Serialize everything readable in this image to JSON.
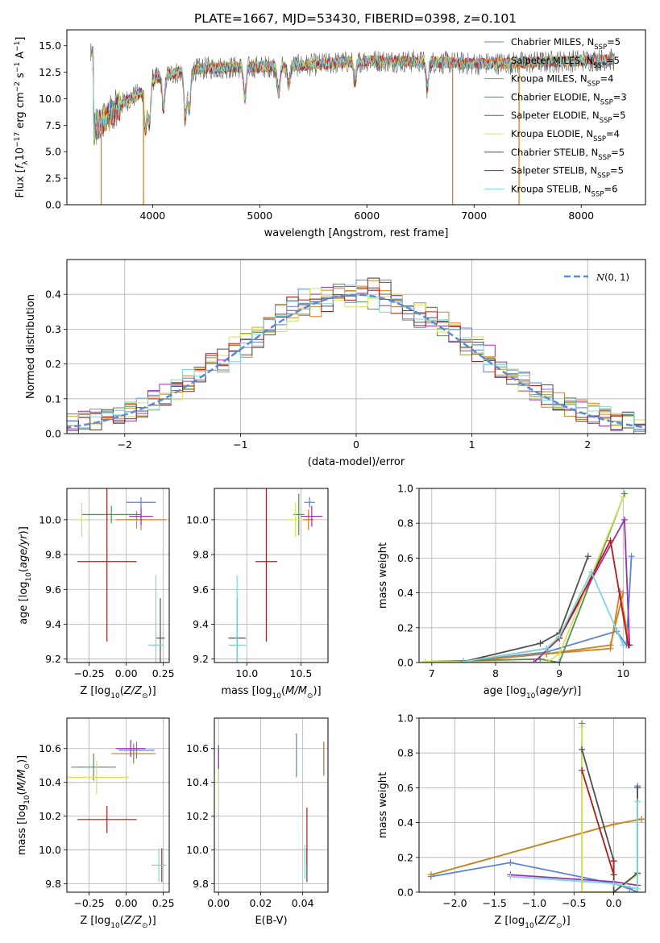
{
  "figure_title": "PLATE=1667, MJD=53430, FIBERID=0398, z=0.101",
  "models": [
    {
      "name": "Chabrier MILES",
      "color": "#5b83d6"
    },
    {
      "name": "Salpeter MILES",
      "color": "#e07b2a"
    },
    {
      "name": "Kroupa MILES",
      "color": "#c08a25"
    },
    {
      "name": "Chabrier ELODIE",
      "color": "#5c8a5c"
    },
    {
      "name": "Salpeter ELODIE",
      "color": "#9b30b0"
    },
    {
      "name": "Kroupa ELODIE",
      "color": "#d8e35a"
    },
    {
      "name": "Chabrier STELIB",
      "color": "#505050"
    },
    {
      "name": "Salpeter STELIB",
      "color": "#b01c1c"
    },
    {
      "name": "Kroupa STELIB",
      "color": "#7ad8d8"
    }
  ],
  "chart_data": [
    {
      "id": "spectrum",
      "type": "line",
      "title": "PLATE=1667, MJD=53430, FIBERID=0398, z=0.101",
      "xlabel": "wavelength [Angstrom, rest frame]",
      "ylabel": "Flux [f_λ 10^-17 erg cm^-2 s^-1 A^-1]",
      "xlim": [
        3200,
        8600
      ],
      "ylim": [
        0,
        16.5
      ],
      "xticks": [
        4000,
        5000,
        6000,
        7000,
        8000
      ],
      "yticks": [
        0.0,
        2.5,
        5.0,
        7.5,
        10.0,
        12.5,
        15.0
      ],
      "grid": false,
      "legend_position": "right",
      "legend": [
        {
          "label": "Chabrier MILES, N",
          "sub": "SSP",
          "suffix": "=5"
        },
        {
          "label": "Salpeter MILES, N",
          "sub": "SSP",
          "suffix": "=5"
        },
        {
          "label": "Kroupa MILES, N",
          "sub": "SSP",
          "suffix": "=4"
        },
        {
          "label": "Chabrier ELODIE, N",
          "sub": "SSP",
          "suffix": "=3"
        },
        {
          "label": "Salpeter ELODIE, N",
          "sub": "SSP",
          "suffix": "=5"
        },
        {
          "label": "Kroupa ELODIE, N",
          "sub": "SSP",
          "suffix": "=4"
        },
        {
          "label": "Chabrier STELIB, N",
          "sub": "SSP",
          "suffix": "=5"
        },
        {
          "label": "Salpeter STELIB, N",
          "sub": "SSP",
          "suffix": "=5"
        },
        {
          "label": "Kroupa STELIB, N",
          "sub": "SSP",
          "suffix": "=6"
        }
      ],
      "continuum": [
        [
          3450,
          7.0
        ],
        [
          3600,
          8.5
        ],
        [
          3750,
          9.8
        ],
        [
          3900,
          10.6
        ],
        [
          4000,
          11.8
        ],
        [
          4200,
          12.4
        ],
        [
          4500,
          12.9
        ],
        [
          5000,
          13.0
        ],
        [
          5500,
          13.2
        ],
        [
          6000,
          13.6
        ],
        [
          6500,
          13.5
        ],
        [
          7000,
          13.3
        ],
        [
          7500,
          13.4
        ],
        [
          8000,
          13.6
        ],
        [
          8300,
          13.7
        ]
      ],
      "absorption_lines": [
        [
          3934,
          7.0
        ],
        [
          3969,
          7.5
        ],
        [
          4102,
          9.0
        ],
        [
          4305,
          8.0
        ],
        [
          4341,
          8.8
        ],
        [
          4861,
          10.0
        ],
        [
          5175,
          10.4
        ],
        [
          5270,
          11.2
        ],
        [
          5890,
          11.5
        ],
        [
          6563,
          11.0
        ]
      ],
      "spikes": [
        [
          3520,
          0
        ],
        [
          3915,
          0
        ],
        [
          6800,
          0
        ],
        [
          7420,
          0
        ]
      ]
    },
    {
      "id": "residuals",
      "type": "histogram",
      "xlabel": "(data-model)/error",
      "ylabel": "Normed distribution",
      "xlim": [
        -2.5,
        2.5
      ],
      "ylim": [
        0,
        0.5
      ],
      "xticks": [
        -2,
        -1,
        0,
        1,
        2
      ],
      "yticks": [
        0.0,
        0.1,
        0.2,
        0.3,
        0.4
      ],
      "grid": true,
      "legend_position": "top-right",
      "reference_label": "N(0,1)",
      "reference_curve": "standard normal",
      "bin_width": 0.1
    },
    {
      "id": "age-vs-Z",
      "type": "errorbar",
      "xlabel": "Z [log10(Z/Z☉)]",
      "ylabel": "age [log10(age/yr)]",
      "xlim": [
        -0.4,
        0.29
      ],
      "ylim": [
        9.18,
        10.18
      ],
      "xticks": [
        -0.25,
        0.0,
        0.25
      ],
      "yticks": [
        9.2,
        9.4,
        9.6,
        9.8,
        10.0
      ],
      "grid": true,
      "points": [
        {
          "model": 0,
          "x": 0.1,
          "y": 10.1,
          "xerr": 0.1,
          "yerr": 0.03
        },
        {
          "model": 1,
          "x": 0.1,
          "y": 10.0,
          "xerr": 0.17,
          "yerr": 0.06
        },
        {
          "model": 2,
          "x": 0.07,
          "y": 10.0,
          "xerr": 0.06,
          "yerr": 0.05
        },
        {
          "model": 3,
          "x": -0.1,
          "y": 10.03,
          "xerr": 0.2,
          "yerr": 0.05
        },
        {
          "model": 4,
          "x": 0.1,
          "y": 10.02,
          "xerr": 0.08,
          "yerr": 0.05
        },
        {
          "model": 5,
          "x": -0.3,
          "y": 10.0,
          "xerr": 0.03,
          "yerr": 0.1
        },
        {
          "model": 6,
          "x": 0.23,
          "y": 9.32,
          "xerr": 0.03,
          "yerr": 0.23
        },
        {
          "model": 7,
          "x": -0.13,
          "y": 9.76,
          "xerr": 0.2,
          "yerr": 0.46
        },
        {
          "model": 8,
          "x": 0.2,
          "y": 9.28,
          "xerr": 0.05,
          "yerr": 0.4
        }
      ]
    },
    {
      "id": "age-vs-mass",
      "type": "errorbar",
      "xlabel": "mass [log10(M/M☉)]",
      "ylabel": "",
      "xlim": [
        9.7,
        10.75
      ],
      "ylim": [
        9.18,
        10.18
      ],
      "xticks": [
        10.0,
        10.5
      ],
      "yticks": [
        9.2,
        9.4,
        9.6,
        9.8,
        10.0
      ],
      "grid": true,
      "points": [
        {
          "model": 0,
          "x": 10.58,
          "y": 10.1,
          "xerr": 0.05,
          "yerr": 0.03
        },
        {
          "model": 1,
          "x": 10.57,
          "y": 10.0,
          "xerr": 0.05,
          "yerr": 0.06
        },
        {
          "model": 2,
          "x": 10.57,
          "y": 10.0,
          "xerr": 0.04,
          "yerr": 0.05
        },
        {
          "model": 3,
          "x": 10.48,
          "y": 10.03,
          "xerr": 0.05,
          "yerr": 0.12
        },
        {
          "model": 4,
          "x": 10.6,
          "y": 10.02,
          "xerr": 0.1,
          "yerr": 0.06
        },
        {
          "model": 5,
          "x": 10.45,
          "y": 10.0,
          "xerr": 0.07,
          "yerr": 0.1
        },
        {
          "model": 6,
          "x": 9.91,
          "y": 9.32,
          "xerr": 0.08,
          "yerr": 0.23
        },
        {
          "model": 7,
          "x": 10.18,
          "y": 9.76,
          "xerr": 0.1,
          "yerr": 0.46
        },
        {
          "model": 8,
          "x": 9.91,
          "y": 9.28,
          "xerr": 0.08,
          "yerr": 0.4
        }
      ]
    },
    {
      "id": "massweight-vs-age",
      "type": "line",
      "xlabel": "age [log10(age/yr)]",
      "ylabel": "mass weight",
      "xlim": [
        6.8,
        10.35
      ],
      "ylim": [
        0,
        1.0
      ],
      "xticks": [
        7,
        8,
        9,
        10
      ],
      "yticks": [
        0.0,
        0.2,
        0.4,
        0.6,
        0.8,
        1.0
      ],
      "grid": true,
      "series": [
        {
          "model": 0,
          "x": [
            7.5,
            8.8,
            9.9,
            10.05,
            10.13
          ],
          "y": [
            0.005,
            0.06,
            0.18,
            0.1,
            0.61
          ]
        },
        {
          "model": 1,
          "x": [
            7.5,
            8.8,
            9.8,
            9.95,
            10.1
          ],
          "y": [
            0.005,
            0.05,
            0.08,
            0.41,
            0.1
          ]
        },
        {
          "model": 2,
          "x": [
            7.5,
            8.8,
            9.8,
            10.0
          ],
          "y": [
            0.005,
            0.05,
            0.1,
            0.4
          ]
        },
        {
          "model": 3,
          "x": [
            6.9,
            8.7,
            9.0,
            10.02
          ],
          "y": [
            0.005,
            0.02,
            0.0,
            0.97
          ]
        },
        {
          "model": 4,
          "x": [
            7.5,
            8.6,
            9.0,
            10.02,
            10.1
          ],
          "y": [
            0.005,
            0.0,
            0.14,
            0.82,
            0.1
          ]
        },
        {
          "model": 5,
          "x": [
            6.9,
            8.8,
            9.0,
            10.0
          ],
          "y": [
            0.005,
            0.0,
            0.05,
            0.95
          ]
        },
        {
          "model": 6,
          "x": [
            7.5,
            8.7,
            9.0,
            9.45
          ],
          "y": [
            0.005,
            0.11,
            0.17,
            0.61
          ]
        },
        {
          "model": 7,
          "x": [
            7.5,
            8.8,
            9.0,
            9.8,
            10.08
          ],
          "y": [
            0.005,
            0.08,
            0.14,
            0.7,
            0.1
          ]
        },
        {
          "model": 8,
          "x": [
            7.5,
            8.8,
            9.0,
            9.5,
            10.0
          ],
          "y": [
            0.005,
            0.08,
            0.15,
            0.52,
            0.1
          ]
        }
      ]
    },
    {
      "id": "mass-vs-Z",
      "type": "errorbar",
      "xlabel": "Z [log10(Z/Z☉)]",
      "ylabel": "mass [log10(M/M☉)]",
      "xlim": [
        -0.4,
        0.29
      ],
      "ylim": [
        9.75,
        10.78
      ],
      "xticks": [
        -0.25,
        0.0,
        0.25
      ],
      "yticks": [
        9.8,
        10.0,
        10.2,
        10.4,
        10.6
      ],
      "grid": true,
      "points": [
        {
          "model": 0,
          "x": 0.07,
          "y": 10.59,
          "xerr": 0.12,
          "yerr": 0.05
        },
        {
          "model": 1,
          "x": 0.05,
          "y": 10.57,
          "xerr": 0.12,
          "yerr": 0.05
        },
        {
          "model": 2,
          "x": 0.05,
          "y": 10.57,
          "xerr": 0.15,
          "yerr": 0.06
        },
        {
          "model": 3,
          "x": -0.22,
          "y": 10.49,
          "xerr": 0.15,
          "yerr": 0.08
        },
        {
          "model": 4,
          "x": 0.03,
          "y": 10.6,
          "xerr": 0.1,
          "yerr": 0.05
        },
        {
          "model": 5,
          "x": -0.2,
          "y": 10.43,
          "xerr": 0.22,
          "yerr": 0.1
        },
        {
          "model": 6,
          "x": 0.24,
          "y": 9.91,
          "xerr": 0.02,
          "yerr": 0.1
        },
        {
          "model": 7,
          "x": -0.13,
          "y": 10.18,
          "xerr": 0.2,
          "yerr": 0.08
        },
        {
          "model": 8,
          "x": 0.22,
          "y": 9.91,
          "xerr": 0.05,
          "yerr": 0.1
        }
      ]
    },
    {
      "id": "mass-vs-EBV",
      "type": "errorbar",
      "xlabel": "E(B-V)",
      "ylabel": "",
      "xlim": [
        -0.002,
        0.052
      ],
      "ylim": [
        9.75,
        10.78
      ],
      "xticks": [
        0.0,
        0.02,
        0.04
      ],
      "yticks": [
        9.8,
        10.0,
        10.2,
        10.4,
        10.6
      ],
      "grid": true,
      "points": [
        {
          "model": 0,
          "x": 0.037,
          "y": 10.56,
          "xerr": 0.0,
          "yerr": 0.13
        },
        {
          "model": 1,
          "x": 0.05,
          "y": 10.54,
          "xerr": 0.0,
          "yerr": 0.1
        },
        {
          "model": 2,
          "x": 0.05,
          "y": 10.54,
          "xerr": 0.0,
          "yerr": 0.1
        },
        {
          "model": 3,
          "x": 0.0,
          "y": 10.5,
          "xerr": 0.0,
          "yerr": 0.1
        },
        {
          "model": 4,
          "x": 0.0,
          "y": 10.55,
          "xerr": 0.0,
          "yerr": 0.07
        },
        {
          "model": 5,
          "x": 0.0,
          "y": 10.36,
          "xerr": 0.0,
          "yerr": 0.12
        },
        {
          "model": 6,
          "x": 0.042,
          "y": 9.91,
          "xerr": 0.0,
          "yerr": 0.1
        },
        {
          "model": 7,
          "x": 0.042,
          "y": 10.08,
          "xerr": 0.0,
          "yerr": 0.17
        },
        {
          "model": 8,
          "x": 0.041,
          "y": 9.93,
          "xerr": 0.0,
          "yerr": 0.1
        }
      ]
    },
    {
      "id": "massweight-vs-Z",
      "type": "line",
      "xlabel": "Z [log10(Z/Z☉)]",
      "ylabel": "mass weight",
      "xlim": [
        -2.45,
        0.4
      ],
      "ylim": [
        0,
        1.0
      ],
      "xticks": [
        -2.0,
        -1.5,
        -1.0,
        -0.5,
        0.0
      ],
      "yticks": [
        0.0,
        0.2,
        0.4,
        0.6,
        0.8,
        1.0
      ],
      "grid": true,
      "series": [
        {
          "model": 0,
          "x": [
            -2.3,
            -1.3,
            0.0,
            0.2,
            0.3,
            0.3
          ],
          "y": [
            0.09,
            0.17,
            0.05,
            0.02,
            0.0,
            0.61
          ]
        },
        {
          "model": 1,
          "x": [
            -2.3,
            0.0,
            0.35
          ],
          "y": [
            0.1,
            0.39,
            0.42
          ]
        },
        {
          "model": 2,
          "x": [
            -2.3,
            0.0,
            0.35
          ],
          "y": [
            0.1,
            0.39,
            0.42
          ]
        },
        {
          "model": 3,
          "x": [
            -0.4,
            -0.4,
            0.0
          ],
          "y": [
            0.97,
            0.0,
            0.0
          ]
        },
        {
          "model": 4,
          "x": [
            -1.3,
            0.0,
            0.3
          ],
          "y": [
            0.1,
            0.06,
            0.04
          ]
        },
        {
          "model": 5,
          "x": [
            -0.4,
            -0.4,
            0.0,
            0.3
          ],
          "y": [
            0.95,
            0.0,
            0.0,
            0.1
          ]
        },
        {
          "model": 6,
          "x": [
            -0.4,
            0.0,
            0.0,
            0.3,
            0.3
          ],
          "y": [
            0.82,
            0.18,
            0.0,
            0.11,
            0.6
          ]
        },
        {
          "model": 7,
          "x": [
            -0.4,
            0.0,
            0.0
          ],
          "y": [
            0.7,
            0.1,
            0.18
          ]
        },
        {
          "model": 8,
          "x": [
            -1.3,
            0.0,
            0.3,
            0.3
          ],
          "y": [
            0.09,
            0.05,
            0.02,
            0.52
          ]
        }
      ]
    }
  ]
}
